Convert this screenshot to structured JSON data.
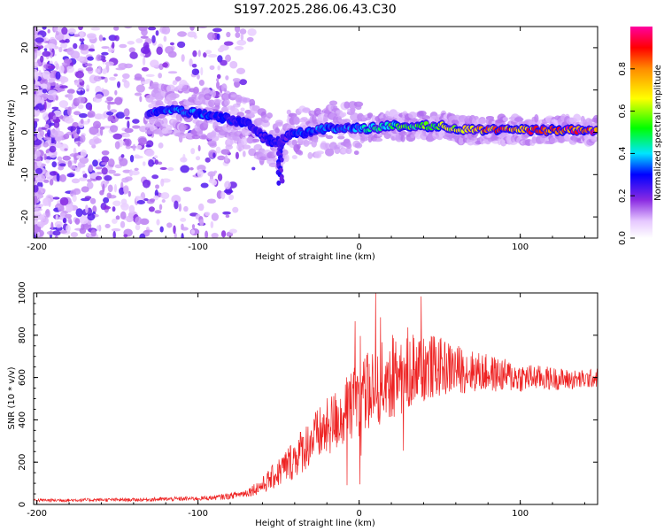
{
  "chart_data": [
    {
      "type": "heatmap",
      "title": "S197.2025.286.06.43.C30",
      "xlabel": "Height of straight line (km)",
      "ylabel": "Frequency (Hz)",
      "xlim": [
        -202,
        148
      ],
      "ylim": [
        -25,
        25
      ],
      "xticks": [
        -200,
        -100,
        0,
        100
      ],
      "yticks": [
        -20,
        -10,
        0,
        10,
        20
      ],
      "colorbar": {
        "label": "Normalized spectral amplitude",
        "range": [
          0,
          1
        ],
        "ticks": [
          0.0,
          0.2,
          0.4,
          0.6,
          0.8
        ],
        "tick_labels": [
          "0.0",
          "0.2",
          "0.4",
          "0.6",
          "0.8"
        ]
      },
      "ridge": {
        "x": [
          -130,
          -120,
          -110,
          -100,
          -90,
          -80,
          -70,
          -65,
          -60,
          -55,
          -50,
          -45,
          -40,
          -30,
          -20,
          -10,
          0,
          10,
          20,
          30,
          40,
          50,
          60,
          70,
          80,
          90,
          100,
          110,
          120,
          130,
          140,
          148
        ],
        "freq": [
          5,
          5.5,
          5,
          4.5,
          4,
          3,
          2,
          1,
          -1,
          -2,
          -3,
          -1,
          0,
          0,
          1,
          1,
          1,
          1,
          1.5,
          1.5,
          1.5,
          1.5,
          1,
          0.5,
          0.5,
          0.5,
          0.5,
          0.5,
          0.5,
          0.5,
          0.5,
          0.5
        ],
        "amplitude": [
          0.3,
          0.35,
          0.35,
          0.35,
          0.3,
          0.3,
          0.25,
          0.25,
          0.25,
          0.25,
          0.3,
          0.2,
          0.3,
          0.35,
          0.35,
          0.35,
          0.4,
          0.45,
          0.5,
          0.55,
          0.55,
          0.6,
          0.7,
          0.8,
          0.85,
          0.85,
          0.85,
          0.9,
          0.9,
          0.9,
          0.9,
          0.9
        ]
      }
    },
    {
      "type": "line",
      "title": "",
      "xlabel": "Height of straight line (km)",
      "ylabel": "SNR (10 * v/v)",
      "xlim": [
        -202,
        148
      ],
      "ylim": [
        0,
        1000
      ],
      "xticks": [
        -200,
        -100,
        0,
        100
      ],
      "yticks": [
        0,
        200,
        400,
        600,
        800,
        1000
      ],
      "series": [
        {
          "name": "SNR",
          "color": "#ee2222",
          "x": [
            -200,
            -180,
            -160,
            -140,
            -120,
            -100,
            -90,
            -80,
            -70,
            -60,
            -50,
            -40,
            -30,
            -20,
            -10,
            0,
            10,
            20,
            30,
            40,
            50,
            60,
            70,
            80,
            90,
            100,
            110,
            120,
            130,
            140,
            148
          ],
          "y": [
            20,
            20,
            22,
            22,
            25,
            28,
            32,
            40,
            55,
            90,
            150,
            220,
            300,
            360,
            430,
            500,
            560,
            600,
            640,
            650,
            650,
            640,
            630,
            620,
            610,
            600,
            600,
            595,
            590,
            590,
            600
          ],
          "spread": [
            8,
            8,
            8,
            8,
            10,
            10,
            12,
            15,
            20,
            40,
            70,
            100,
            120,
            140,
            160,
            180,
            190,
            200,
            200,
            170,
            140,
            120,
            100,
            90,
            80,
            70,
            60,
            55,
            50,
            45,
            45
          ]
        }
      ]
    }
  ]
}
